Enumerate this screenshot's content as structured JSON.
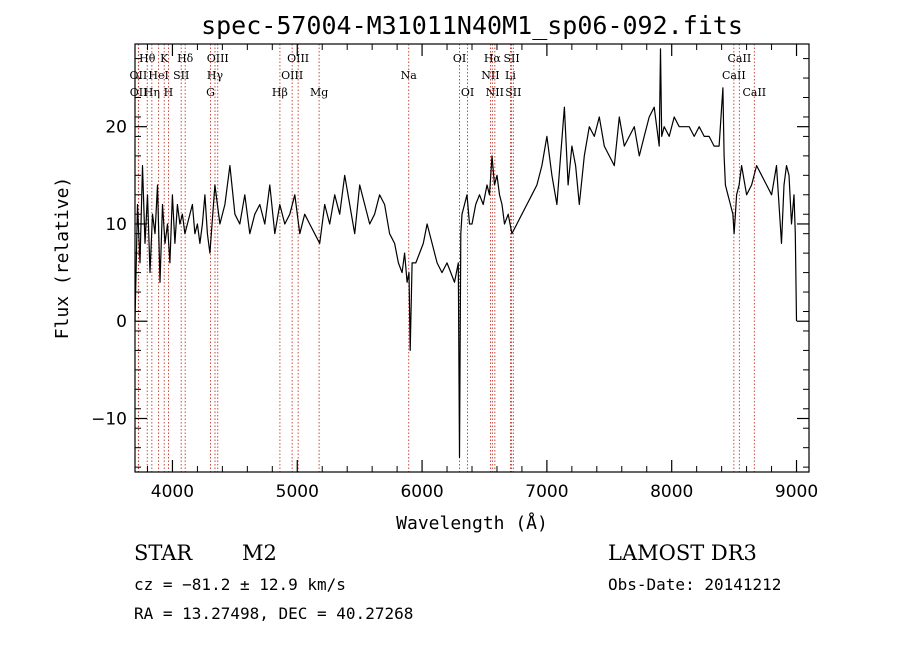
{
  "chart_data": {
    "type": "line",
    "title": "spec-57004-M31011N40M1_sp06-092.fits",
    "xlabel": "Wavelength (Å)",
    "ylabel": "Flux (relative)",
    "xlim": [
      3700,
      9100
    ],
    "ylim": [
      -15.5,
      28.5
    ],
    "x_ticks": [
      4000,
      5000,
      6000,
      7000,
      8000,
      9000
    ],
    "x_tick_labels": [
      "4000",
      "5000",
      "6000",
      "7000",
      "8000",
      "9000"
    ],
    "y_ticks": [
      -10,
      0,
      10,
      20
    ],
    "y_tick_labels": [
      "−10",
      "0",
      "10",
      "20"
    ],
    "grid": false,
    "series": [
      {
        "name": "spectrum",
        "color": "#000000",
        "x": [
          3700,
          3720,
          3740,
          3760,
          3780,
          3800,
          3820,
          3840,
          3860,
          3880,
          3900,
          3920,
          3940,
          3960,
          3980,
          4000,
          4020,
          4040,
          4060,
          4080,
          4100,
          4120,
          4140,
          4160,
          4180,
          4200,
          4220,
          4240,
          4260,
          4280,
          4300,
          4340,
          4380,
          4420,
          4460,
          4500,
          4540,
          4580,
          4620,
          4660,
          4700,
          4740,
          4780,
          4820,
          4860,
          4900,
          4940,
          4980,
          5020,
          5060,
          5100,
          5140,
          5180,
          5220,
          5260,
          5300,
          5340,
          5380,
          5420,
          5460,
          5500,
          5540,
          5580,
          5620,
          5660,
          5700,
          5740,
          5780,
          5810,
          5840,
          5860,
          5880,
          5895,
          5905,
          5920,
          5950,
          5980,
          6010,
          6040,
          6080,
          6120,
          6160,
          6200,
          6230,
          6260,
          6290,
          6300,
          6310,
          6320,
          6340,
          6360,
          6380,
          6400,
          6430,
          6460,
          6490,
          6520,
          6540,
          6560,
          6580,
          6600,
          6620,
          6640,
          6660,
          6690,
          6720,
          6760,
          6800,
          6840,
          6880,
          6920,
          6960,
          7000,
          7040,
          7080,
          7110,
          7140,
          7170,
          7200,
          7230,
          7260,
          7300,
          7340,
          7380,
          7420,
          7460,
          7500,
          7540,
          7580,
          7620,
          7660,
          7700,
          7740,
          7780,
          7820,
          7860,
          7880,
          7900,
          7910,
          7920,
          7940,
          7980,
          8020,
          8060,
          8100,
          8140,
          8180,
          8220,
          8260,
          8300,
          8340,
          8380,
          8410,
          8420,
          8430,
          8450,
          8470,
          8490,
          8500,
          8510,
          8520,
          8540,
          8560,
          8600,
          8640,
          8680,
          8720,
          8760,
          8800,
          8840,
          8860,
          8880,
          8900,
          8920,
          8940,
          8960,
          8980,
          8990,
          9000
        ],
        "y": [
          0,
          12,
          6,
          16,
          8,
          13,
          5,
          11,
          9,
          14,
          4,
          12,
          8,
          10,
          6,
          13,
          8,
          12,
          10,
          11,
          9,
          10,
          11,
          12,
          9,
          10,
          8,
          10,
          13,
          9,
          7,
          14,
          10,
          12,
          16,
          11,
          10,
          13,
          9,
          11,
          12,
          10,
          14,
          9,
          12,
          10,
          11,
          13,
          9,
          11,
          10,
          9,
          8,
          12,
          10,
          13,
          11,
          15,
          12,
          9,
          14,
          12,
          10,
          11,
          13,
          12,
          9,
          8,
          6,
          5,
          7,
          4,
          5,
          -3,
          6,
          6,
          7,
          8,
          10,
          8,
          6,
          5,
          6,
          5,
          4,
          6,
          -14,
          9,
          11,
          12,
          13,
          10,
          10,
          12,
          13,
          12,
          14,
          13,
          17,
          14,
          15,
          13,
          12,
          10,
          11,
          9,
          10,
          11,
          12,
          13,
          14,
          16,
          19,
          15,
          12,
          17,
          22,
          14,
          18,
          16,
          12,
          17,
          20,
          19,
          21,
          18,
          17,
          16,
          21,
          18,
          19,
          20,
          17,
          19,
          21,
          22,
          20,
          18,
          28,
          19,
          20,
          19,
          21,
          20,
          20,
          20,
          19,
          20,
          19,
          19,
          18,
          18,
          24,
          17,
          14,
          13,
          12,
          11,
          9,
          11,
          13,
          14,
          16,
          13,
          14,
          16,
          15,
          14,
          13,
          16,
          12,
          8,
          14,
          16,
          15,
          10,
          13,
          9,
          0
        ]
      }
    ],
    "line_ids": [
      {
        "label": "Hθ",
        "x": 3798,
        "row": 1
      },
      {
        "label": "K",
        "x": 3934,
        "row": 1
      },
      {
        "label": "Hδ",
        "x": 4102,
        "row": 1
      },
      {
        "label": "OIII",
        "x": 4363,
        "row": 1
      },
      {
        "label": "OIII",
        "x": 5007,
        "row": 1
      },
      {
        "label": "OI",
        "x": 6300,
        "row": 1
      },
      {
        "label": "Hα",
        "x": 6563,
        "row": 1
      },
      {
        "label": "SII",
        "x": 6717,
        "row": 1
      },
      {
        "label": "CaII",
        "x": 8542,
        "row": 1
      },
      {
        "label": "OII",
        "x": 3727,
        "row": 2
      },
      {
        "label": "HeI",
        "x": 3889,
        "row": 2
      },
      {
        "label": "SII",
        "x": 4070,
        "row": 2
      },
      {
        "label": "Hγ",
        "x": 4341,
        "row": 2
      },
      {
        "label": "OIII",
        "x": 4959,
        "row": 2
      },
      {
        "label": "Na",
        "x": 5893,
        "row": 2
      },
      {
        "label": "NII",
        "x": 6548,
        "row": 2
      },
      {
        "label": "Li",
        "x": 6708,
        "row": 2
      },
      {
        "label": "CaII",
        "x": 8498,
        "row": 2
      },
      {
        "label": "OII",
        "x": 3729,
        "row": 3
      },
      {
        "label": "Hη",
        "x": 3835,
        "row": 3
      },
      {
        "label": "H",
        "x": 3968,
        "row": 3
      },
      {
        "label": "G",
        "x": 4305,
        "row": 3
      },
      {
        "label": "Hβ",
        "x": 4861,
        "row": 3
      },
      {
        "label": "Mg",
        "x": 5175,
        "row": 3
      },
      {
        "label": "OI",
        "x": 6364,
        "row": 3
      },
      {
        "label": "NII",
        "x": 6583,
        "row": 3
      },
      {
        "label": "SII",
        "x": 6731,
        "row": 3
      },
      {
        "label": "CaII",
        "x": 8662,
        "row": 3
      }
    ]
  },
  "info": {
    "object_class": "STAR",
    "subclass": "M2",
    "survey": "LAMOST DR3",
    "cz": "cz = −81.2 ± 12.9 km/s",
    "obs_date": "Obs-Date: 20141212",
    "coords": "RA =  13.27498, DEC =  40.27268"
  },
  "colors": {
    "spectrum": "#000000",
    "line_marker": "#c0392b",
    "axes": "#000000"
  }
}
